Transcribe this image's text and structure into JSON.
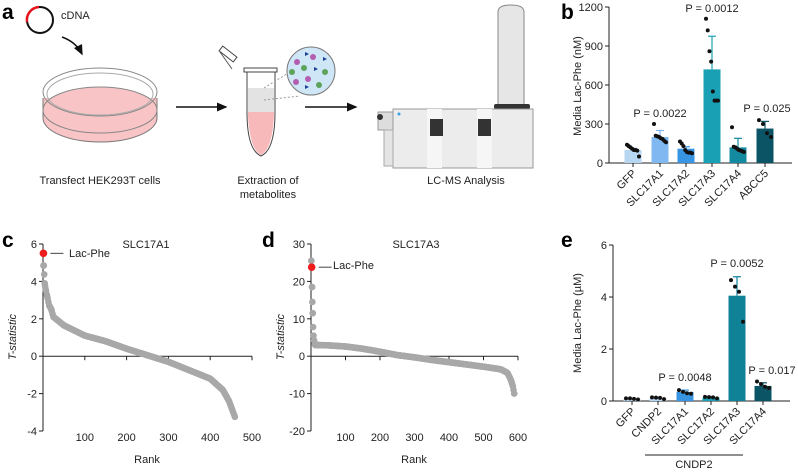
{
  "panel_letters": {
    "a": "a",
    "b": "b",
    "c": "c",
    "d": "d",
    "e": "e"
  },
  "schematic": {
    "plasmid_label": "cDNA",
    "step1": "Transfect HEK293T cells",
    "step2_line1": "Extraction of",
    "step2_line2": "metabolites",
    "step3": "LC-MS Analysis",
    "colors": {
      "media": "#f9c4c6",
      "plasmid_insert": "#e8141c",
      "extract": "#cfe6f7",
      "molecule_purple": "#b35eb0",
      "molecule_green": "#5fa35a",
      "molecule_blue": "#1d3f9b"
    }
  },
  "chart_data": [
    {
      "id": "b",
      "type": "bar",
      "title": "",
      "ylabel": "Media Lac-Phe (nM)",
      "ylim": [
        0,
        1200
      ],
      "yticks": [
        "0",
        "300",
        "600",
        "900",
        "1200"
      ],
      "categories": [
        "GFP",
        "SLC17A1",
        "SLC17A2",
        "SLC17A3",
        "SLC17A4",
        "ABCC5"
      ],
      "values": [
        100,
        200,
        110,
        720,
        120,
        265
      ],
      "error_upper": [
        115,
        250,
        125,
        975,
        190,
        320
      ],
      "points": [
        [
          140,
          130,
          120,
          110,
          100,
          100,
          95,
          50
        ],
        [
          300,
          210,
          205,
          200,
          190,
          185,
          170,
          160
        ],
        [
          165,
          150,
          130,
          100,
          85,
          80,
          80,
          75
        ],
        [
          1110,
          1020,
          860,
          780,
          550,
          480,
          480,
          480
        ],
        [
          275,
          125,
          120,
          110,
          100,
          95,
          90,
          85
        ],
        [
          330,
          300,
          230,
          200
        ]
      ],
      "colors": [
        "#b7d6f2",
        "#80b9f1",
        "#3895e3",
        "#1aa0b5",
        "#138aa0",
        "#0b5466"
      ],
      "annotations": [
        "P = 0.0022",
        null,
        "P = 0.0012",
        null,
        "P = 0.025"
      ],
      "pvals": {
        "SLC17A1": "P = 0.0022",
        "SLC17A3": "P = 0.0012",
        "ABCC5": "P = 0.025"
      }
    },
    {
      "id": "c",
      "type": "scatter",
      "title": "SLC17A1",
      "xlabel": "Rank",
      "ylabel": "T-statistic",
      "ylim": [
        -4,
        6
      ],
      "xlim": [
        0,
        500
      ],
      "xticks": [
        "100",
        "200",
        "300",
        "400",
        "500"
      ],
      "yticks": [
        "-4",
        "-2",
        "0",
        "2",
        "4",
        "6"
      ],
      "n_points": 460,
      "highlight": {
        "label": "Lac-Phe",
        "rank": 1,
        "t": 5.5,
        "color": "#ee1c1c"
      },
      "curve": [
        [
          2,
          4.85
        ],
        [
          4,
          3.9
        ],
        [
          6,
          3.6
        ],
        [
          10,
          3.2
        ],
        [
          15,
          2.7
        ],
        [
          20,
          2.5
        ],
        [
          25,
          2.1
        ],
        [
          50,
          1.65
        ],
        [
          100,
          1.1
        ],
        [
          150,
          0.8
        ],
        [
          200,
          0.4
        ],
        [
          250,
          0.05
        ],
        [
          300,
          -0.3
        ],
        [
          350,
          -0.75
        ],
        [
          400,
          -1.2
        ],
        [
          430,
          -1.8
        ],
        [
          445,
          -2.4
        ],
        [
          455,
          -3.0
        ],
        [
          460,
          -3.3
        ]
      ],
      "point_color": "#a8a8a8"
    },
    {
      "id": "d",
      "type": "scatter",
      "title": "SLC17A3",
      "xlabel": "Rank",
      "ylabel": "T-statistic",
      "ylim": [
        -20,
        30
      ],
      "xlim": [
        0,
        600
      ],
      "xticks": [
        "100",
        "200",
        "300",
        "400",
        "500",
        "600"
      ],
      "yticks": [
        "-20",
        "-10",
        "0",
        "10",
        "20",
        "30"
      ],
      "n_points": 590,
      "highlight": {
        "label": "Lac-Phe",
        "rank": 2,
        "t": 23.8,
        "color": "#ee1c1c"
      },
      "curve": [
        [
          1,
          25.5
        ],
        [
          3,
          18.5
        ],
        [
          4,
          14.5
        ],
        [
          5,
          11.5
        ],
        [
          6,
          7.8
        ],
        [
          7,
          5.5
        ],
        [
          9,
          4.2
        ],
        [
          12,
          3.0
        ],
        [
          50,
          2.9
        ],
        [
          100,
          2.6
        ],
        [
          150,
          2.0
        ],
        [
          200,
          1.2
        ],
        [
          250,
          0.3
        ],
        [
          300,
          -0.3
        ],
        [
          350,
          -1.0
        ],
        [
          400,
          -1.6
        ],
        [
          450,
          -2.2
        ],
        [
          500,
          -2.8
        ],
        [
          550,
          -3.5
        ],
        [
          570,
          -4.5
        ],
        [
          580,
          -6.5
        ],
        [
          585,
          -8.0
        ],
        [
          590,
          -10.5
        ]
      ],
      "point_color": "#a8a8a8"
    },
    {
      "id": "e",
      "type": "bar",
      "title": "",
      "ylabel": "Media Lac-Phe (µM)",
      "ylim": [
        0,
        6
      ],
      "yticks": [
        "0",
        "2",
        "4",
        "6"
      ],
      "categories": [
        "GFP",
        "CNDP2",
        "SLC17A1",
        "SLC17A2",
        "SLC17A3",
        "SLC17A4"
      ],
      "group_label": "CNDP2",
      "values": [
        0.07,
        0.1,
        0.35,
        0.13,
        4.05,
        0.58
      ],
      "error_upper": [
        0.09,
        0.13,
        0.42,
        0.16,
        4.78,
        0.7
      ],
      "points": [
        [
          0.1,
          0.1,
          0.08,
          0.06
        ],
        [
          0.14,
          0.13,
          0.12,
          0.07
        ],
        [
          0.42,
          0.35,
          0.3,
          0.28
        ],
        [
          0.16,
          0.15,
          0.14,
          0.1
        ],
        [
          4.65,
          4.4,
          4.2,
          3.05
        ],
        [
          0.75,
          0.65,
          0.55,
          0.5
        ]
      ],
      "colors": [
        "#b7d6f2",
        "#b7d6f2",
        "#3895e3",
        "#1aa0b5",
        "#0f8298",
        "#0b5466"
      ],
      "pvals": {
        "SLC17A1": "P = 0.0048",
        "SLC17A3": "P = 0.0052",
        "SLC17A4": "P = 0.017"
      }
    }
  ]
}
